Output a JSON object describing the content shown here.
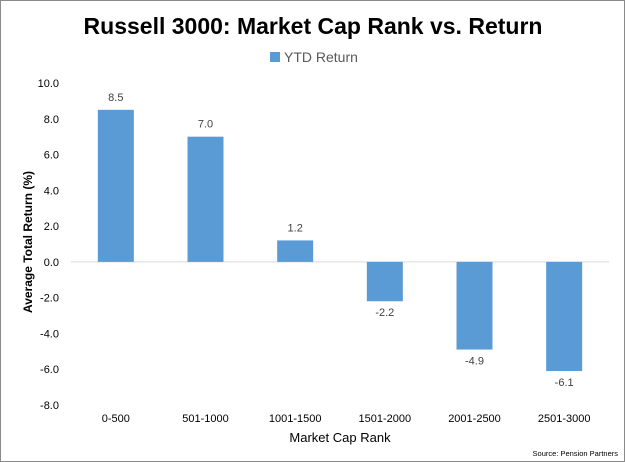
{
  "chart_data": {
    "type": "bar",
    "title": "Russell 3000: Market Cap Rank vs. Return",
    "xlabel": "Market Cap Rank",
    "ylabel": "Average Total Return (%)",
    "categories": [
      "0-500",
      "501-1000",
      "1001-1500",
      "1501-2000",
      "2001-2500",
      "2501-3000"
    ],
    "series": [
      {
        "name": "YTD Return",
        "values": [
          8.5,
          7.0,
          1.2,
          -2.2,
          -4.9,
          -6.1
        ],
        "data_labels": [
          "8.5",
          "7.0",
          "1.2",
          "-2.2",
          "-4.9",
          "-6.1"
        ],
        "color": "#5b9bd5"
      }
    ],
    "ylim": [
      -8,
      10
    ],
    "yticks": [
      -8,
      -6,
      -4,
      -2,
      0,
      2,
      4,
      6,
      8,
      10
    ],
    "ytick_labels": [
      "-8.0",
      "-6.0",
      "-4.0",
      "-2.0",
      "0.0",
      "2.0",
      "4.0",
      "6.0",
      "8.0",
      "10.0"
    ],
    "grid": false,
    "legend_position": "top",
    "source": "Source: Pension Partners"
  }
}
